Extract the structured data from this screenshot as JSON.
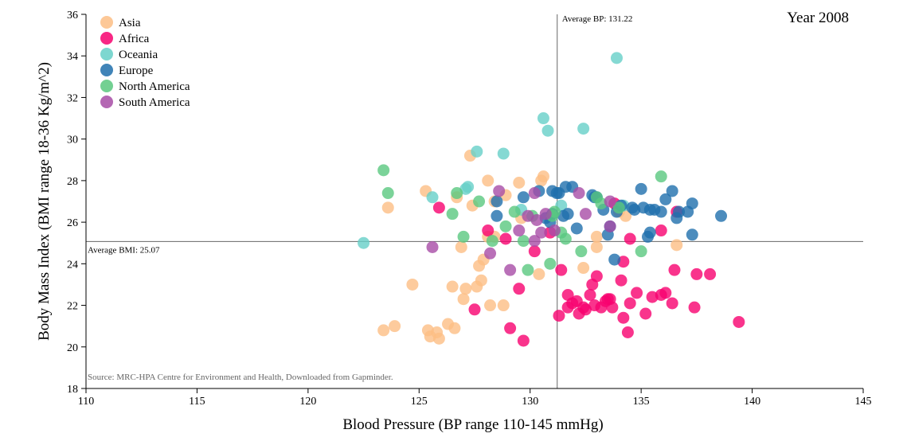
{
  "chart_data": {
    "type": "scatter",
    "year_label": "Year 2008",
    "xlabel": "Blood Pressure (BP range 110-145 mmHg)",
    "ylabel": "Body Mass Index (BMI range 18-36 Kg/m^2)",
    "xlim": [
      110,
      145
    ],
    "ylim": [
      18,
      36
    ],
    "x_ticks": [
      110,
      115,
      120,
      125,
      130,
      135,
      140,
      145
    ],
    "y_ticks": [
      18,
      20,
      22,
      24,
      26,
      28,
      30,
      32,
      34,
      36
    ],
    "avg_bp": {
      "value": 131.22,
      "label": "Average BP: 131.22"
    },
    "avg_bmi": {
      "value": 25.07,
      "label": "Average BMI: 25.07"
    },
    "source": "Source: MRC-HPA Centre for Environment and Health, Downloaded from Gapminder.",
    "legend_position": "top-left",
    "series": [
      {
        "name": "Asia",
        "color": "#fdbe85",
        "points": [
          [
            123.4,
            20.8
          ],
          [
            123.9,
            21.0
          ],
          [
            124.7,
            23.0
          ],
          [
            125.3,
            27.5
          ],
          [
            125.4,
            20.8
          ],
          [
            125.8,
            20.7
          ],
          [
            125.9,
            20.4
          ],
          [
            126.3,
            21.1
          ],
          [
            126.5,
            22.9
          ],
          [
            126.6,
            20.9
          ],
          [
            126.7,
            27.2
          ],
          [
            126.9,
            24.8
          ],
          [
            127.0,
            22.3
          ],
          [
            127.1,
            22.8
          ],
          [
            127.4,
            26.8
          ],
          [
            127.6,
            22.9
          ],
          [
            127.7,
            23.9
          ],
          [
            127.8,
            23.2
          ],
          [
            127.9,
            24.2
          ],
          [
            128.1,
            25.3
          ],
          [
            128.1,
            28.0
          ],
          [
            128.2,
            22.0
          ],
          [
            128.4,
            25.3
          ],
          [
            128.4,
            27.0
          ],
          [
            128.8,
            22.0
          ],
          [
            128.9,
            27.3
          ],
          [
            129.5,
            27.9
          ],
          [
            129.6,
            26.2
          ],
          [
            130.4,
            23.5
          ],
          [
            130.5,
            28.0
          ],
          [
            130.6,
            28.2
          ],
          [
            132.4,
            23.8
          ],
          [
            133.0,
            25.3
          ],
          [
            133.0,
            24.8
          ],
          [
            134.0,
            26.5
          ],
          [
            134.3,
            26.3
          ],
          [
            136.6,
            24.9
          ],
          [
            123.6,
            26.7
          ],
          [
            127.3,
            29.2
          ],
          [
            125.5,
            20.5
          ]
        ]
      },
      {
        "name": "Africa",
        "color": "#f7016f",
        "points": [
          [
            125.9,
            26.7
          ],
          [
            127.5,
            21.8
          ],
          [
            128.1,
            25.6
          ],
          [
            128.9,
            25.2
          ],
          [
            129.1,
            20.9
          ],
          [
            129.5,
            22.8
          ],
          [
            129.7,
            20.3
          ],
          [
            130.2,
            24.6
          ],
          [
            130.9,
            25.5
          ],
          [
            131.3,
            21.5
          ],
          [
            131.4,
            23.7
          ],
          [
            131.7,
            22.5
          ],
          [
            131.7,
            21.9
          ],
          [
            131.9,
            22.1
          ],
          [
            132.1,
            22.2
          ],
          [
            132.2,
            21.6
          ],
          [
            132.4,
            21.9
          ],
          [
            132.5,
            21.8
          ],
          [
            132.7,
            22.5
          ],
          [
            132.8,
            23.0
          ],
          [
            132.9,
            22.0
          ],
          [
            133.0,
            23.4
          ],
          [
            133.2,
            21.9
          ],
          [
            133.4,
            22.2
          ],
          [
            133.5,
            22.3
          ],
          [
            133.7,
            21.9
          ],
          [
            134.1,
            23.2
          ],
          [
            134.2,
            21.4
          ],
          [
            134.2,
            24.1
          ],
          [
            134.4,
            20.7
          ],
          [
            134.5,
            22.1
          ],
          [
            134.5,
            25.2
          ],
          [
            134.8,
            22.6
          ],
          [
            135.2,
            21.6
          ],
          [
            135.5,
            22.4
          ],
          [
            135.9,
            25.6
          ],
          [
            135.9,
            22.5
          ],
          [
            136.1,
            22.6
          ],
          [
            136.4,
            22.1
          ],
          [
            136.5,
            23.7
          ],
          [
            136.6,
            26.5
          ],
          [
            137.4,
            21.9
          ],
          [
            137.5,
            23.5
          ],
          [
            138.1,
            23.5
          ],
          [
            139.4,
            21.2
          ],
          [
            133.8,
            26.9
          ],
          [
            133.6,
            22.3
          ]
        ]
      },
      {
        "name": "Oceania",
        "color": "#66d0c8",
        "points": [
          [
            122.5,
            25.0
          ],
          [
            125.6,
            27.2
          ],
          [
            127.1,
            27.6
          ],
          [
            127.2,
            27.7
          ],
          [
            127.6,
            29.4
          ],
          [
            128.8,
            29.3
          ],
          [
            129.6,
            26.6
          ],
          [
            130.6,
            31.0
          ],
          [
            130.8,
            30.4
          ],
          [
            132.4,
            30.5
          ],
          [
            133.9,
            33.9
          ],
          [
            134.2,
            26.8
          ],
          [
            131.4,
            26.8
          ]
        ]
      },
      {
        "name": "Europe",
        "color": "#1f6fac",
        "points": [
          [
            128.5,
            27.0
          ],
          [
            128.5,
            26.3
          ],
          [
            129.7,
            27.2
          ],
          [
            130.4,
            27.5
          ],
          [
            130.7,
            26.2
          ],
          [
            131.0,
            27.5
          ],
          [
            131.2,
            27.4
          ],
          [
            131.3,
            27.4
          ],
          [
            131.5,
            26.3
          ],
          [
            131.6,
            27.7
          ],
          [
            131.7,
            26.4
          ],
          [
            131.9,
            27.7
          ],
          [
            132.1,
            25.7
          ],
          [
            132.8,
            27.3
          ],
          [
            132.9,
            27.2
          ],
          [
            133.3,
            26.6
          ],
          [
            133.5,
            25.4
          ],
          [
            133.6,
            25.8
          ],
          [
            133.8,
            24.2
          ],
          [
            133.9,
            26.5
          ],
          [
            134.1,
            26.8
          ],
          [
            134.6,
            26.7
          ],
          [
            134.7,
            26.6
          ],
          [
            135.0,
            27.6
          ],
          [
            135.1,
            26.7
          ],
          [
            135.3,
            25.3
          ],
          [
            135.4,
            25.5
          ],
          [
            135.4,
            26.6
          ],
          [
            135.6,
            26.6
          ],
          [
            135.9,
            26.5
          ],
          [
            136.1,
            27.1
          ],
          [
            136.4,
            27.5
          ],
          [
            136.6,
            26.2
          ],
          [
            136.7,
            26.5
          ],
          [
            137.1,
            26.5
          ],
          [
            137.3,
            26.9
          ],
          [
            137.3,
            25.4
          ],
          [
            138.6,
            26.3
          ],
          [
            131.0,
            26.4
          ],
          [
            130.9,
            26.0
          ],
          [
            133.0,
            27.2
          ]
        ]
      },
      {
        "name": "North America",
        "color": "#5ac87f",
        "points": [
          [
            123.4,
            28.5
          ],
          [
            123.6,
            27.4
          ],
          [
            126.5,
            26.4
          ],
          [
            126.7,
            27.4
          ],
          [
            127.0,
            25.3
          ],
          [
            127.7,
            27.0
          ],
          [
            128.3,
            25.1
          ],
          [
            128.9,
            25.8
          ],
          [
            129.3,
            26.5
          ],
          [
            129.7,
            25.1
          ],
          [
            129.9,
            23.7
          ],
          [
            130.1,
            26.3
          ],
          [
            130.9,
            24.0
          ],
          [
            131.0,
            26.3
          ],
          [
            131.1,
            26.5
          ],
          [
            131.4,
            25.5
          ],
          [
            131.6,
            25.2
          ],
          [
            132.3,
            24.6
          ],
          [
            133.0,
            27.2
          ],
          [
            133.2,
            26.9
          ],
          [
            135.0,
            24.6
          ],
          [
            135.9,
            28.2
          ],
          [
            134.0,
            26.7
          ]
        ]
      },
      {
        "name": "South America",
        "color": "#a74ca6",
        "points": [
          [
            125.6,
            24.8
          ],
          [
            128.2,
            24.5
          ],
          [
            128.6,
            27.5
          ],
          [
            129.1,
            23.7
          ],
          [
            129.5,
            25.6
          ],
          [
            130.2,
            25.1
          ],
          [
            130.5,
            25.5
          ],
          [
            130.7,
            26.4
          ],
          [
            131.1,
            25.6
          ],
          [
            132.2,
            27.4
          ],
          [
            132.5,
            26.4
          ],
          [
            133.6,
            27.0
          ],
          [
            133.6,
            25.8
          ],
          [
            130.2,
            27.4
          ],
          [
            130.3,
            26.1
          ],
          [
            129.9,
            26.3
          ]
        ]
      }
    ]
  }
}
